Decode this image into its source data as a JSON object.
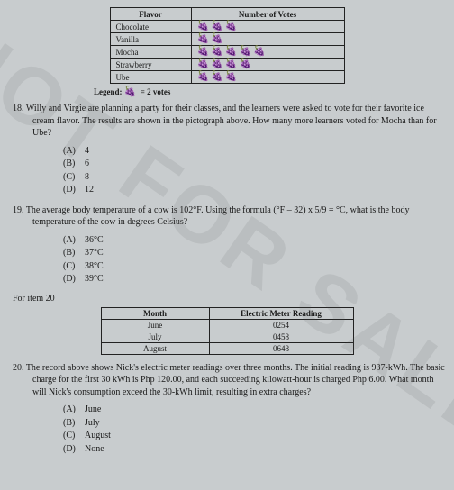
{
  "watermark": "NOT FOR SALE",
  "flavor_table": {
    "headers": [
      "Flavor",
      "Number of Votes"
    ],
    "rows": [
      {
        "flavor": "Chocolate",
        "votes": 3
      },
      {
        "flavor": "Vanilla",
        "votes": 2
      },
      {
        "flavor": "Mocha",
        "votes": 5
      },
      {
        "flavor": "Strawberry",
        "votes": 4
      },
      {
        "flavor": "Ube",
        "votes": 3
      }
    ],
    "legend_prefix": "Legend:",
    "legend_text": "= 2 votes"
  },
  "q18": {
    "number": "18.",
    "text": "Willy and Virgie are planning a party for their classes, and the learners were asked to vote for their favorite ice cream flavor. The results are shown in the pictograph above. How many more learners voted for Mocha than for Ube?",
    "choices": [
      {
        "label": "(A)",
        "val": "4"
      },
      {
        "label": "(B)",
        "val": "6"
      },
      {
        "label": "(C)",
        "val": "8"
      },
      {
        "label": "(D)",
        "val": "12"
      }
    ]
  },
  "q19": {
    "number": "19.",
    "text": "The average body temperature of a cow is 102°F. Using the formula (°F – 32) x 5/9 = °C, what is the body temperature of the cow in degrees Celsius?",
    "choices": [
      {
        "label": "(A)",
        "val": "36°C"
      },
      {
        "label": "(B)",
        "val": "37°C"
      },
      {
        "label": "(C)",
        "val": "38°C"
      },
      {
        "label": "(D)",
        "val": "39°C"
      }
    ]
  },
  "for_item": "For item 20",
  "meter_table": {
    "headers": [
      "Month",
      "Electric Meter Reading"
    ],
    "rows": [
      {
        "month": "June",
        "reading": "0254"
      },
      {
        "month": "July",
        "reading": "0458"
      },
      {
        "month": "August",
        "reading": "0648"
      }
    ]
  },
  "q20": {
    "number": "20.",
    "text": "The record above shows Nick's electric meter readings over three months. The initial reading is 937-kWh. The basic charge for the first 30 kWh is Php 120.00, and each succeeding kilowatt-hour is charged Php 6.00. What month will Nick's consumption exceed the 30-kWh limit, resulting in extra charges?",
    "choices": [
      {
        "label": "(A)",
        "val": "June"
      },
      {
        "label": "(B)",
        "val": "July"
      },
      {
        "label": "(C)",
        "val": "August"
      },
      {
        "label": "(D)",
        "val": "None"
      }
    ]
  }
}
